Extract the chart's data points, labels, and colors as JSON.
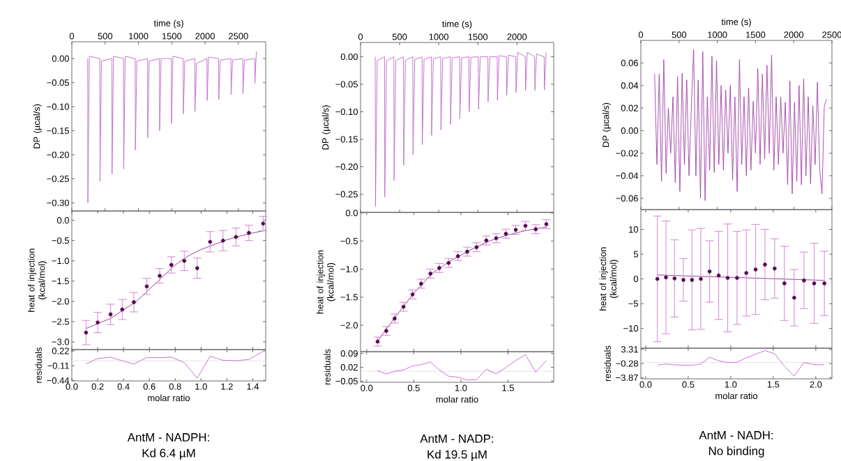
{
  "chart_data": [
    {
      "type": "line",
      "xlabel": "time (s)",
      "ylabel": "DP (µcal/s)",
      "xlim": [
        0,
        2910
      ],
      "ylim": [
        -0.317,
        0.035
      ],
      "xticks": [
        0,
        500,
        1000,
        1500,
        2000,
        2500
      ],
      "yticks": [
        {
          "value": 0,
          "label": "0.00"
        },
        {
          "value": -0.05,
          "label": "−0.05"
        },
        {
          "value": -0.1,
          "label": "−0.10"
        },
        {
          "value": -0.15,
          "label": "−0.15"
        },
        {
          "value": -0.2,
          "label": "−0.20"
        },
        {
          "value": -0.25,
          "label": "−0.25"
        },
        {
          "value": -0.3,
          "label": "−0.30"
        }
      ],
      "series": [
        {
          "color": "#c066cc",
          "x": [
            238,
            241,
            263,
            420,
            423,
            445,
            601,
            604,
            626,
            776,
            779,
            801,
            951,
            954,
            976,
            1136,
            1139,
            1161,
            1315,
            1318,
            1340,
            1493,
            1496,
            1518,
            1671,
            1674,
            1696,
            1846,
            1849,
            1871,
            2028,
            2031,
            2053,
            2203,
            2206,
            2228,
            2388,
            2391,
            2413,
            2566,
            2569,
            2591,
            2745,
            2748,
            2770
          ],
          "values": [
            0,
            -0.3,
            0.005,
            0,
            -0.255,
            -0.005,
            0,
            -0.24,
            0.005,
            0,
            -0.23,
            0.005,
            0,
            -0.19,
            -0.005,
            0,
            -0.165,
            -0.005,
            0,
            -0.15,
            0.0,
            0,
            -0.135,
            0.005,
            0,
            -0.115,
            -0.005,
            0,
            -0.11,
            -0.01,
            0,
            -0.087,
            0.003,
            0,
            -0.085,
            -0.003,
            0,
            -0.075,
            -0.003,
            0,
            -0.073,
            -0.003,
            0,
            -0.052,
            0.015
          ]
        }
      ]
    },
    {
      "type": "scatter",
      "ylabel": "heat of injection (kcal/mol)",
      "xlim": [
        0,
        1.5
      ],
      "ylim": [
        -3.19,
        0.23
      ],
      "tick_labels": "y",
      "xticks": [
        0,
        0.2,
        0.4,
        0.6,
        0.8,
        1,
        1.2,
        1.4
      ],
      "yticks": [
        {
          "value": 0,
          "label": "0.0"
        },
        {
          "value": -0.5,
          "label": "−0.5"
        },
        {
          "value": -1,
          "label": "−1.0"
        },
        {
          "value": -1.5,
          "label": "−1.5"
        },
        {
          "value": -2,
          "label": "−2.0"
        },
        {
          "value": -2.5,
          "label": "−2.5"
        },
        {
          "value": -3,
          "label": "−3.0"
        }
      ],
      "x": [
        0.11,
        0.2,
        0.3,
        0.39,
        0.48,
        0.58,
        0.68,
        0.77,
        0.87,
        0.97,
        1.07,
        1.17,
        1.27,
        1.37,
        1.48
      ],
      "series": [
        {
          "type": "line",
          "color": "#8e2a8e",
          "x": [
            0.11,
            0.3,
            0.5,
            0.6,
            0.7,
            0.8,
            0.9,
            1.0,
            1.1,
            1.2,
            1.3,
            1.4,
            1.5
          ],
          "values": [
            -2.67,
            -2.42,
            -2.0,
            -1.7,
            -1.4,
            -1.1,
            -0.88,
            -0.72,
            -0.6,
            -0.48,
            -0.39,
            -0.31,
            -0.25
          ]
        },
        {
          "color": "#560a50",
          "marker": "circle",
          "values": [
            -2.77,
            -2.52,
            -2.32,
            -2.2,
            -2.02,
            -1.63,
            -1.37,
            -1.1,
            -1.0,
            -1.18,
            -0.53,
            -0.5,
            -0.41,
            -0.31,
            -0.08
          ],
          "errors": [
            0.3,
            0.25,
            0.25,
            0.25,
            0.24,
            0.2,
            0.18,
            0.2,
            0.24,
            0.25,
            0.25,
            0.25,
            0.22,
            0.19,
            0.18
          ]
        }
      ]
    },
    {
      "type": "line",
      "xlabel": "molar ratio",
      "ylabel": "residuals",
      "xlim": [
        0,
        1.5
      ],
      "ylim": [
        -0.45,
        0.25
      ],
      "xticks": [
        {
          "value": 0,
          "label": "0.0"
        },
        0.2,
        0.4,
        0.6,
        0.8,
        {
          "value": 1,
          "label": "1.0"
        },
        1.2,
        1.4
      ],
      "yticks": [
        {
          "value": 0.22,
          "label": "0.22"
        },
        {
          "value": -0.11,
          "label": "−0.11"
        },
        {
          "value": -0.44,
          "label": "−0.44"
        }
      ],
      "ref_lines": [
        {
          "axis": "y",
          "value": 0,
          "color": "#dddddd"
        }
      ],
      "annotations": [
        "AntM - NADPH:",
        "Kd 6.4 µM"
      ],
      "series": [
        {
          "color": "#c066cc",
          "x": [
            0.11,
            0.2,
            0.3,
            0.39,
            0.48,
            0.58,
            0.68,
            0.77,
            0.87,
            0.97,
            1.07,
            1.17,
            1.27,
            1.37,
            1.48
          ],
          "values": [
            -0.07,
            0.05,
            0.08,
            0.0,
            -0.07,
            0.07,
            0.07,
            0.08,
            -0.04,
            -0.39,
            0.1,
            0.01,
            0.0,
            0.03,
            0.21
          ]
        }
      ]
    },
    {
      "type": "line",
      "xlabel": "time (s)",
      "ylabel": "DP (µcal/s)",
      "xlim": [
        0,
        2470
      ],
      "ylim": [
        -0.283,
        0.026
      ],
      "xticks": [
        0,
        500,
        1000,
        1500,
        2000
      ],
      "yticks": [
        {
          "value": 0,
          "label": "0.00"
        },
        {
          "value": -0.05,
          "label": "−0.05"
        },
        {
          "value": -0.1,
          "label": "−0.10"
        },
        {
          "value": -0.15,
          "label": "−0.15"
        },
        {
          "value": -0.2,
          "label": "−0.20"
        },
        {
          "value": -0.25,
          "label": "−0.25"
        }
      ],
      "series": [
        {
          "color": "#c066cc",
          "x": [
            188,
            191,
            213,
            307,
            310,
            332,
            426,
            429,
            451,
            549,
            552,
            574,
            668,
            671,
            693,
            787,
            790,
            812,
            906,
            909,
            931,
            1025,
            1028,
            1050,
            1148,
            1151,
            1173,
            1267,
            1270,
            1292,
            1386,
            1389,
            1411,
            1506,
            1509,
            1531,
            1628,
            1631,
            1653,
            1747,
            1750,
            1772,
            1866,
            1869,
            1891,
            1985,
            1988,
            2010,
            2107,
            2110,
            2132,
            2226,
            2229,
            2251,
            2348,
            2351,
            2373
          ],
          "values": [
            0,
            -0.272,
            -0.007,
            0,
            -0.255,
            -0.007,
            0,
            -0.225,
            -0.007,
            0,
            -0.197,
            -0.006,
            0,
            -0.178,
            -0.005,
            0,
            -0.16,
            -0.005,
            0,
            -0.143,
            -0.004,
            0,
            -0.133,
            -0.003,
            0,
            -0.123,
            -0.002,
            0,
            -0.113,
            -0.002,
            0,
            -0.1,
            -0.001,
            0,
            -0.095,
            0,
            0,
            -0.082,
            0,
            0,
            -0.079,
            0.002,
            0,
            -0.07,
            0.003,
            0,
            -0.065,
            0.008,
            0,
            -0.061,
            0.008,
            0,
            -0.061,
            0.005,
            0,
            -0.06,
            0.008
          ]
        }
      ]
    },
    {
      "type": "scatter",
      "ylabel": "heat of injection (kcal/mol)",
      "xlim": [
        -0.065,
        1.985
      ],
      "ylim": [
        -2.47,
        0.01
      ],
      "tick_labels": "y",
      "xticks": [
        0,
        0.5,
        1,
        1.5
      ],
      "yticks": [
        {
          "value": 0,
          "label": "0.0"
        },
        {
          "value": -0.5,
          "label": "−0.5"
        },
        {
          "value": -1,
          "label": "−1.0"
        },
        {
          "value": -1.5,
          "label": "−1.5"
        },
        {
          "value": -2,
          "label": "−2.0"
        }
      ],
      "x": [
        0.116,
        0.208,
        0.297,
        0.391,
        0.487,
        0.578,
        0.677,
        0.771,
        0.87,
        0.969,
        1.067,
        1.166,
        1.27,
        1.374,
        1.478,
        1.582,
        1.685,
        1.794,
        1.907
      ],
      "series": [
        {
          "type": "line",
          "color": "#8e2a8e",
          "x": [
            0.116,
            0.3,
            0.5,
            0.7,
            0.9,
            1.1,
            1.3,
            1.5,
            1.7,
            1.907
          ],
          "values": [
            -2.28,
            -1.86,
            -1.43,
            -1.07,
            -0.84,
            -0.66,
            -0.5,
            -0.39,
            -0.31,
            -0.25
          ]
        },
        {
          "color": "#560a50",
          "marker": "circle",
          "values": [
            -2.29,
            -2.1,
            -1.88,
            -1.67,
            -1.45,
            -1.26,
            -1.08,
            -0.98,
            -0.89,
            -0.77,
            -0.69,
            -0.61,
            -0.49,
            -0.45,
            -0.37,
            -0.3,
            -0.23,
            -0.29,
            -0.2
          ],
          "errors": [
            0.08,
            0.08,
            0.08,
            0.08,
            0.08,
            0.08,
            0.08,
            0.08,
            0.08,
            0.08,
            0.08,
            0.08,
            0.08,
            0.08,
            0.08,
            0.08,
            0.08,
            0.08,
            0.08
          ]
        }
      ]
    },
    {
      "type": "line",
      "xlabel": "molar ratio",
      "ylabel": "residuals",
      "xlim": [
        -0.065,
        1.985
      ],
      "ylim": [
        -0.056,
        0.099
      ],
      "xticks": [
        {
          "value": 0,
          "label": "0.0"
        },
        0.5,
        {
          "value": 1,
          "label": "1.0"
        },
        1.5
      ],
      "yticks": [
        {
          "value": 0.09,
          "label": "0.09"
        },
        {
          "value": 0.02,
          "label": "0.02"
        },
        {
          "value": -0.05,
          "label": "−0.05"
        }
      ],
      "ref_lines": [
        {
          "axis": "y",
          "value": 0,
          "color": "#dddddd"
        }
      ],
      "annotations": [
        "AntM - NADP:",
        "Kd 19.5 µM"
      ],
      "series": [
        {
          "color": "#c066cc",
          "x": [
            0.116,
            0.208,
            0.297,
            0.391,
            0.487,
            0.578,
            0.677,
            0.771,
            0.87,
            0.969,
            1.067,
            1.166,
            1.27,
            1.374,
            1.478,
            1.582,
            1.685,
            1.794,
            1.907
          ],
          "values": [
            0.003,
            -0.014,
            0.0,
            0.006,
            0.027,
            0.033,
            0.047,
            0.007,
            -0.025,
            -0.03,
            -0.044,
            -0.043,
            0.011,
            -0.013,
            0.019,
            0.054,
            0.084,
            -0.005,
            0.054
          ]
        }
      ]
    },
    {
      "type": "line",
      "xlabel": "time (s)",
      "ylabel": "DP (µcal/s)",
      "xlim": [
        0,
        2500
      ],
      "ylim": [
        -0.07,
        0.08
      ],
      "xticks": [
        0,
        500,
        1000,
        1500,
        2000,
        2500
      ],
      "yticks": [
        {
          "value": 0.06,
          "label": "0.06"
        },
        {
          "value": 0.04,
          "label": "0.04"
        },
        {
          "value": 0.02,
          "label": "0.02"
        },
        {
          "value": 0,
          "label": "0.00"
        },
        {
          "value": -0.02,
          "label": "−0.02"
        },
        {
          "value": -0.04,
          "label": "−0.04"
        },
        {
          "value": -0.06,
          "label": "−0.06"
        }
      ],
      "series": [
        {
          "color": "#a040a8",
          "x": [
            180,
            210,
            240,
            270,
            300,
            330,
            360,
            390,
            420,
            450,
            480,
            510,
            540,
            570,
            600,
            630,
            660,
            690,
            720,
            750,
            780,
            810,
            840,
            870,
            900,
            930,
            960,
            990,
            1020,
            1050,
            1080,
            1110,
            1140,
            1170,
            1200,
            1230,
            1260,
            1290,
            1320,
            1350,
            1380,
            1410,
            1440,
            1470,
            1500,
            1530,
            1560,
            1590,
            1620,
            1650,
            1680,
            1710,
            1740,
            1770,
            1800,
            1830,
            1860,
            1890,
            1920,
            1950,
            1980,
            2010,
            2040,
            2070,
            2100,
            2130,
            2160,
            2190,
            2220,
            2250,
            2280,
            2310,
            2340,
            2370,
            2400,
            2430
          ],
          "values": [
            0.05,
            -0.03,
            0.05,
            -0.045,
            0.063,
            -0.038,
            0.02,
            -0.02,
            0.03,
            -0.046,
            0.048,
            -0.054,
            0.051,
            -0.03,
            0.045,
            -0.04,
            0.02,
            0.072,
            -0.04,
            0.045,
            -0.06,
            0.07,
            -0.062,
            0.03,
            -0.035,
            0.066,
            -0.037,
            0.062,
            -0.03,
            0.04,
            -0.035,
            0.036,
            -0.02,
            0.04,
            -0.044,
            0.03,
            -0.054,
            0.063,
            -0.03,
            0.03,
            -0.04,
            0.038,
            -0.035,
            0.026,
            -0.02,
            0.055,
            -0.03,
            0.05,
            -0.025,
            0.058,
            -0.02,
            0.067,
            -0.035,
            0.03,
            -0.03,
            0.03,
            -0.02,
            0.025,
            -0.048,
            0.044,
            -0.056,
            0.025,
            -0.045,
            0.04,
            -0.048,
            0.046,
            -0.04,
            0.03,
            -0.047,
            0.022,
            -0.03,
            0.043,
            -0.035,
            -0.056,
            0.022,
            0.028
          ]
        }
      ]
    },
    {
      "type": "scatter",
      "ylabel": "heat of injection (kcal/mol)",
      "xlim": [
        -0.057,
        2.19
      ],
      "ylim": [
        -14,
        14
      ],
      "tick_labels": "y",
      "xticks": [
        0,
        0.5,
        1,
        1.5,
        2
      ],
      "yticks": [
        {
          "value": 10,
          "label": "10"
        },
        {
          "value": 5,
          "label": "5"
        },
        {
          "value": 0,
          "label": "0"
        },
        {
          "value": -5,
          "label": "−5"
        },
        {
          "value": -10,
          "label": "−10"
        }
      ],
      "x": [
        0.137,
        0.238,
        0.339,
        0.443,
        0.544,
        0.648,
        0.751,
        0.858,
        0.964,
        1.074,
        1.183,
        1.292,
        1.402,
        1.516,
        1.631,
        1.746,
        1.861,
        1.981,
        2.101
      ],
      "series": [
        {
          "type": "line",
          "color": "#8e2a8e",
          "x": [
            0.137,
            2.101
          ],
          "values": [
            0.8,
            -0.3
          ]
        },
        {
          "color": "#560a50",
          "marker": "circle",
          "values": [
            0.0,
            0.3,
            0.1,
            -0.2,
            -0.2,
            0.0,
            1.5,
            0.7,
            0.2,
            0.2,
            1.2,
            1.9,
            2.9,
            2.1,
            -0.9,
            -3.8,
            -0.3,
            -0.9,
            -0.9
          ],
          "errors": [
            12.7,
            11.4,
            7.8,
            4.3,
            10.1,
            10.2,
            6.2,
            8.9,
            10.9,
            9.4,
            8.7,
            9.1,
            7.1,
            6.0,
            7.5,
            5.7,
            5.7,
            8.1,
            6.5
          ]
        }
      ]
    },
    {
      "type": "line",
      "xlabel": "molar ratio",
      "ylabel": "residuals",
      "xlim": [
        -0.057,
        2.19
      ],
      "ylim": [
        -4.17,
        3.61
      ],
      "xticks": [
        {
          "value": 0,
          "label": "0.0"
        },
        0.5,
        {
          "value": 1,
          "label": "1.0"
        },
        1.5,
        {
          "value": 2,
          "label": "2.0"
        }
      ],
      "yticks": [
        {
          "value": 3.31,
          "label": "3.31"
        },
        {
          "value": -0.28,
          "label": "−0.28"
        },
        {
          "value": -3.87,
          "label": "−3.87"
        }
      ],
      "ref_lines": [
        {
          "axis": "y",
          "value": 0,
          "color": "#dddddd"
        }
      ],
      "annotations": [
        "AntM - NADH:",
        "No binding"
      ],
      "series": [
        {
          "color": "#c066cc",
          "x": [
            0.137,
            0.238,
            0.339,
            0.443,
            0.544,
            0.648,
            0.751,
            0.858,
            0.964,
            1.074,
            1.183,
            1.292,
            1.402,
            1.516,
            1.631,
            1.746,
            1.861,
            1.981,
            2.101
          ],
          "values": [
            -0.7,
            -0.4,
            -0.6,
            -0.7,
            -0.7,
            -0.4,
            1.3,
            0.4,
            0.0,
            0.0,
            1.2,
            2.1,
            3.0,
            2.2,
            -0.9,
            -3.5,
            0.0,
            -0.6,
            -0.6
          ]
        }
      ]
    }
  ]
}
